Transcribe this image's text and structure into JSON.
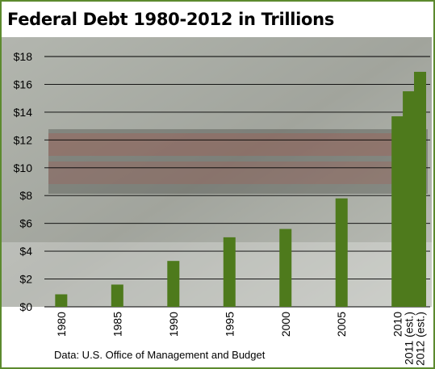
{
  "title": "Federal Debt 1980-2012 in Trillions",
  "source": "Data: U.S. Office of Management and Budget",
  "colors": {
    "bar": "#4e7a1c",
    "border": "#5c8a2e",
    "gridline": "#000000"
  },
  "chart_data": {
    "type": "bar",
    "title": "Federal Debt 1980-2012 in Trillions",
    "xlabel": "",
    "ylabel": "",
    "categories": [
      "1980",
      "1985",
      "1990",
      "1995",
      "2000",
      "2005",
      "2010",
      "2011 (est.)",
      "2012 (est.)"
    ],
    "x": [
      1980,
      1985,
      1990,
      1995,
      2000,
      2005,
      2010,
      2011,
      2012
    ],
    "values": [
      0.9,
      1.6,
      3.3,
      5.0,
      5.6,
      7.8,
      13.7,
      15.5,
      16.9
    ],
    "ylim": [
      0,
      18
    ],
    "yticks": [
      0,
      2,
      4,
      6,
      8,
      10,
      12,
      14,
      16,
      18
    ],
    "ytick_labels": [
      "$0",
      "$2",
      "$4",
      "$6",
      "$8",
      "$10",
      "$12",
      "$14",
      "$16",
      "$18"
    ],
    "grid": true,
    "legend": "none"
  }
}
